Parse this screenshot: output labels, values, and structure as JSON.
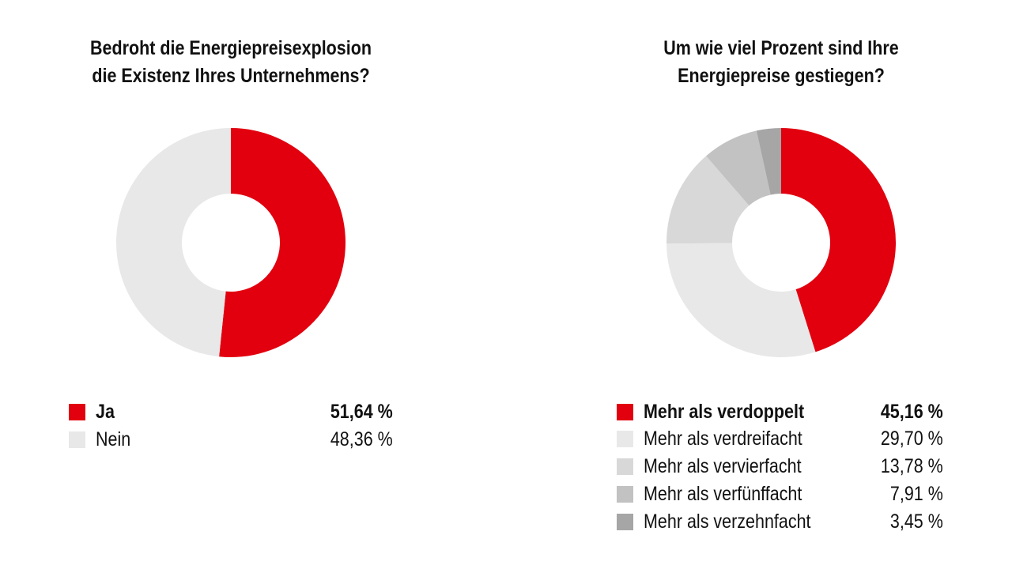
{
  "chart_data": [
    {
      "type": "pie",
      "title": "Bedroht die Energiepreisexplosion die Existenz Ihres Unternehmens?",
      "title_lines": [
        "Bedroht die Energiepreisexplosion",
        "die Existenz Ihres Unternehmens?"
      ],
      "donut": true,
      "categories": [
        "Ja",
        "Nein"
      ],
      "values": [
        51.64,
        48.36
      ],
      "value_labels": [
        "51,64 %",
        "48,36 %"
      ],
      "colors": [
        "#e2000f",
        "#e8e8e8"
      ],
      "legend": "bottom"
    },
    {
      "type": "pie",
      "title": "Um wie viel Prozent sind Ihre Energiepreise gestiegen?",
      "title_lines": [
        "Um wie viel Prozent sind Ihre",
        "Energiepreise gestiegen?"
      ],
      "donut": true,
      "categories": [
        "Mehr als verdoppelt",
        "Mehr als verdreifacht",
        "Mehr als vervierfacht",
        "Mehr als verfünffacht",
        "Mehr als verzehnfacht"
      ],
      "values": [
        45.16,
        29.7,
        13.78,
        7.91,
        3.45
      ],
      "value_labels": [
        "45,16 %",
        "29,70 %",
        "13,78 %",
        "7,91 %",
        "3,45 %"
      ],
      "colors": [
        "#e2000f",
        "#e8e8e8",
        "#d8d8d8",
        "#c2c2c2",
        "#a6a6a6"
      ],
      "legend": "bottom"
    }
  ]
}
